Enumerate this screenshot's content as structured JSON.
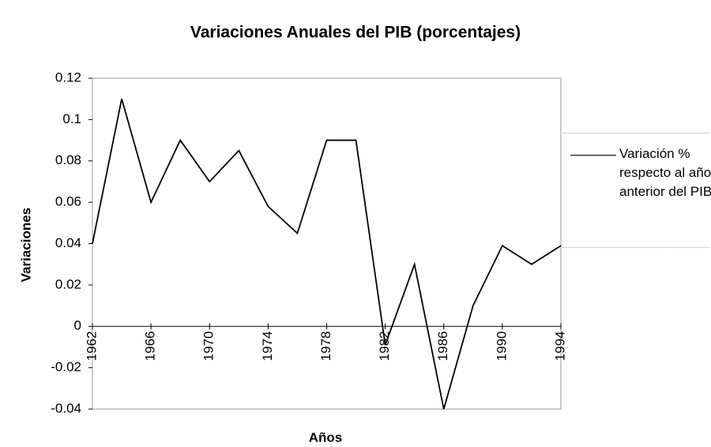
{
  "chart_data": {
    "type": "line",
    "title": "Variaciones Anuales del PIB (porcentajes)",
    "xlabel": "Años",
    "ylabel": "Variaciones",
    "x": [
      1962,
      1964,
      1966,
      1968,
      1970,
      1972,
      1974,
      1976,
      1978,
      1980,
      1982,
      1984,
      1986,
      1988,
      1990,
      1992,
      1994
    ],
    "series": [
      {
        "name": "Variación % respecto al año anterior del PIB",
        "color": "#000000",
        "values": [
          0.04,
          0.11,
          0.06,
          0.09,
          0.07,
          0.085,
          0.058,
          0.045,
          0.09,
          0.09,
          -0.009,
          0.03,
          -0.04,
          0.01,
          0.039,
          0.03,
          0.039
        ]
      }
    ],
    "xlim": [
      1962,
      1994
    ],
    "xticks": [
      1962,
      1966,
      1970,
      1974,
      1978,
      1982,
      1986,
      1990,
      1994
    ],
    "ylim": [
      -0.04,
      0.12
    ],
    "yticks": [
      0.12,
      0.1,
      0.08,
      0.06,
      0.04,
      0.02,
      0,
      -0.02,
      -0.04
    ],
    "grid": false,
    "legend": "right"
  }
}
